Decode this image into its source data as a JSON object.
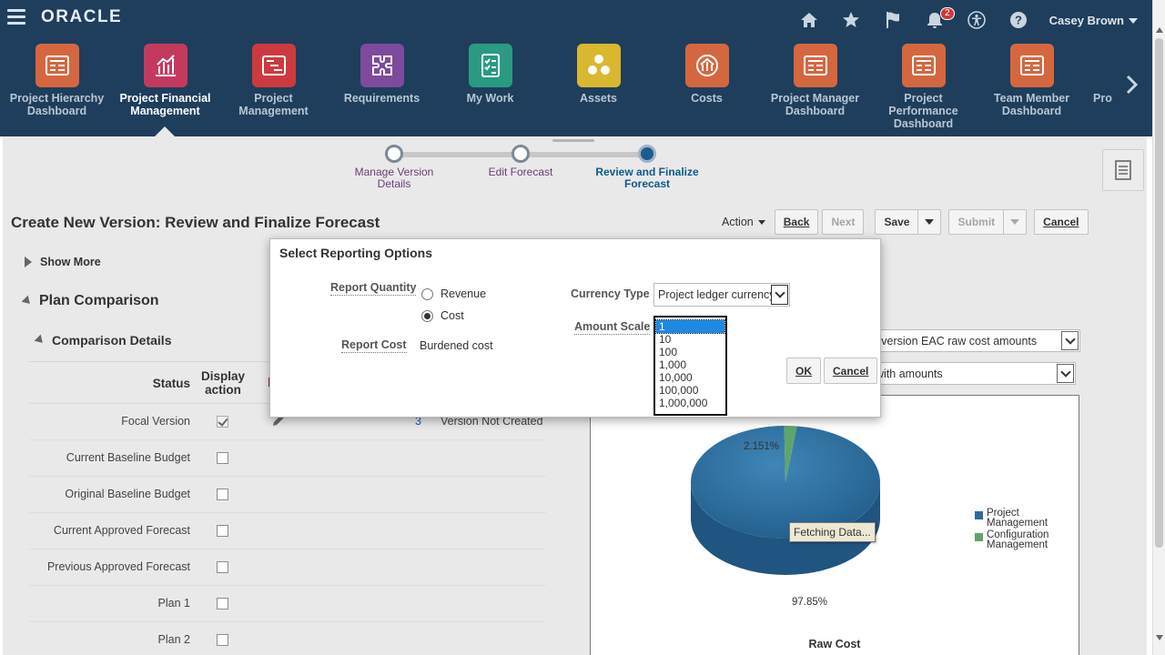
{
  "header": {
    "logo": "ORACLE",
    "notification_count": "2",
    "user_name": "Casey Brown"
  },
  "springboard": [
    {
      "label": "Project Hierarchy Dashboard",
      "color": "#d5673f"
    },
    {
      "label": "Project Financial Management",
      "color": "#c43a5f"
    },
    {
      "label": "Project Management",
      "color": "#cc3a3f"
    },
    {
      "label": "Requirements",
      "color": "#7d4a9e"
    },
    {
      "label": "My Work",
      "color": "#2a9a82"
    },
    {
      "label": "Assets",
      "color": "#d9b72e"
    },
    {
      "label": "Costs",
      "color": "#d5673f"
    },
    {
      "label": "Project Manager Dashboard",
      "color": "#d5673f"
    },
    {
      "label": "Project Performance Dashboard",
      "color": "#d5673f"
    },
    {
      "label": "Team Member Dashboard",
      "color": "#d5673f"
    },
    {
      "label": "Pro",
      "color": "#d5673f"
    }
  ],
  "train": [
    {
      "label": "Manage Version Details"
    },
    {
      "label": "Edit Forecast"
    },
    {
      "label": "Review and Finalize Forecast"
    }
  ],
  "page": {
    "title": "Create New Version: Review and Finalize Forecast",
    "toolbar": {
      "action": "Action",
      "back": "Back",
      "next": "Next",
      "save": "Save",
      "submit": "Submit",
      "cancel": "Cancel"
    },
    "show_more": "Show More",
    "plan_comparison": "Plan Comparison",
    "comparison_details": "Comparison Details"
  },
  "table": {
    "headers": {
      "status": "Status",
      "display_action": "Display action"
    },
    "rows": [
      {
        "status": "Focal Version",
        "checked": true,
        "num": "3",
        "version_status": "Version Not Created"
      },
      {
        "status": "Current Baseline Budget",
        "checked": false
      },
      {
        "status": "Original Baseline Budget",
        "checked": false
      },
      {
        "status": "Current Approved Forecast",
        "checked": false
      },
      {
        "status": "Previous Approved Forecast",
        "checked": false
      },
      {
        "status": "Plan 1",
        "checked": false
      },
      {
        "status": "Plan 2",
        "checked": false
      }
    ]
  },
  "right_panel": {
    "select1": "l version EAC raw cost amounts",
    "select2": "with amounts"
  },
  "chart_data": {
    "type": "pie",
    "title": "Raw Cost",
    "slices": [
      {
        "name": "Project Management",
        "value": 97.85,
        "label": "97.85%",
        "color": "#2c6d9c"
      },
      {
        "name": "Configuration Management",
        "value": 2.151,
        "label": "2.151%",
        "color": "#5fa56b"
      }
    ],
    "overlay": "Fetching Data...",
    "legend_position": "right"
  },
  "dialog": {
    "title": "Select Reporting Options",
    "report_quantity_label": "Report Quantity",
    "options": {
      "revenue": "Revenue",
      "cost": "Cost"
    },
    "report_cost_label": "Report Cost",
    "report_cost_value": "Burdened cost",
    "currency_type_label": "Currency Type",
    "currency_type_value": "Project ledger currency",
    "amount_scale_label": "Amount Scale",
    "amount_scale_options": [
      "1",
      "10",
      "100",
      "1,000",
      "10,000",
      "100,000",
      "1,000,000"
    ],
    "ok": "OK",
    "cancel": "Cancel"
  }
}
